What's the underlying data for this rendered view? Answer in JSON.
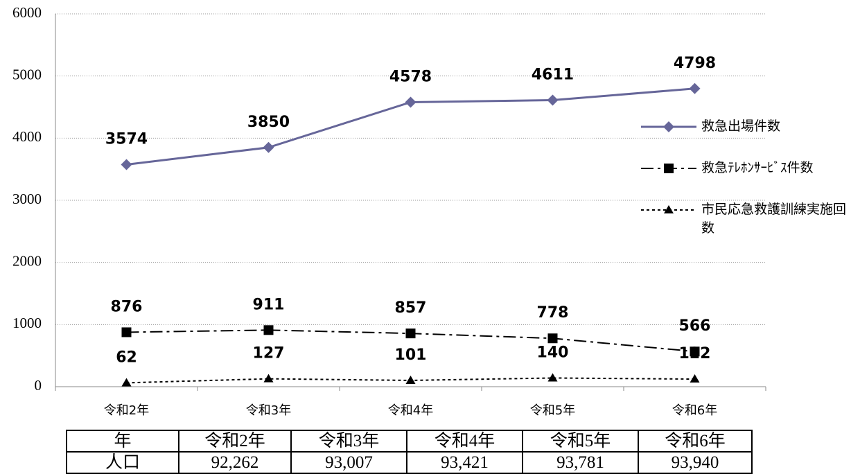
{
  "chart_data": {
    "type": "line",
    "categories": [
      "令和2年",
      "令和3年",
      "令和4年",
      "令和5年",
      "令和6年"
    ],
    "series": [
      {
        "name": "救急出場件数",
        "color": "#666699",
        "dash": "solid",
        "marker": "diamond",
        "values": [
          3574,
          3850,
          4578,
          4611,
          4798
        ]
      },
      {
        "name": "救急ﾃﾚﾎﾝｻｰﾋﾞｽ件数",
        "color": "#000000",
        "dash": "dashdot",
        "marker": "square",
        "values": [
          876,
          911,
          857,
          778,
          566
        ]
      },
      {
        "name": "市民応急救護訓練実施回数",
        "color": "#000000",
        "dash": "dotted",
        "marker": "triangle",
        "values": [
          62,
          127,
          101,
          140,
          122
        ]
      }
    ],
    "ylim": [
      0,
      6000
    ],
    "yticks": [
      0,
      1000,
      2000,
      3000,
      4000,
      5000,
      6000
    ],
    "grid": true,
    "legend": "right"
  },
  "table": {
    "header": [
      "年",
      "令和2年",
      "令和3年",
      "令和4年",
      "令和5年",
      "令和6年"
    ],
    "rows": [
      [
        "人口",
        "92,262",
        "93,007",
        "93,421",
        "93,781",
        "93,940"
      ]
    ]
  }
}
